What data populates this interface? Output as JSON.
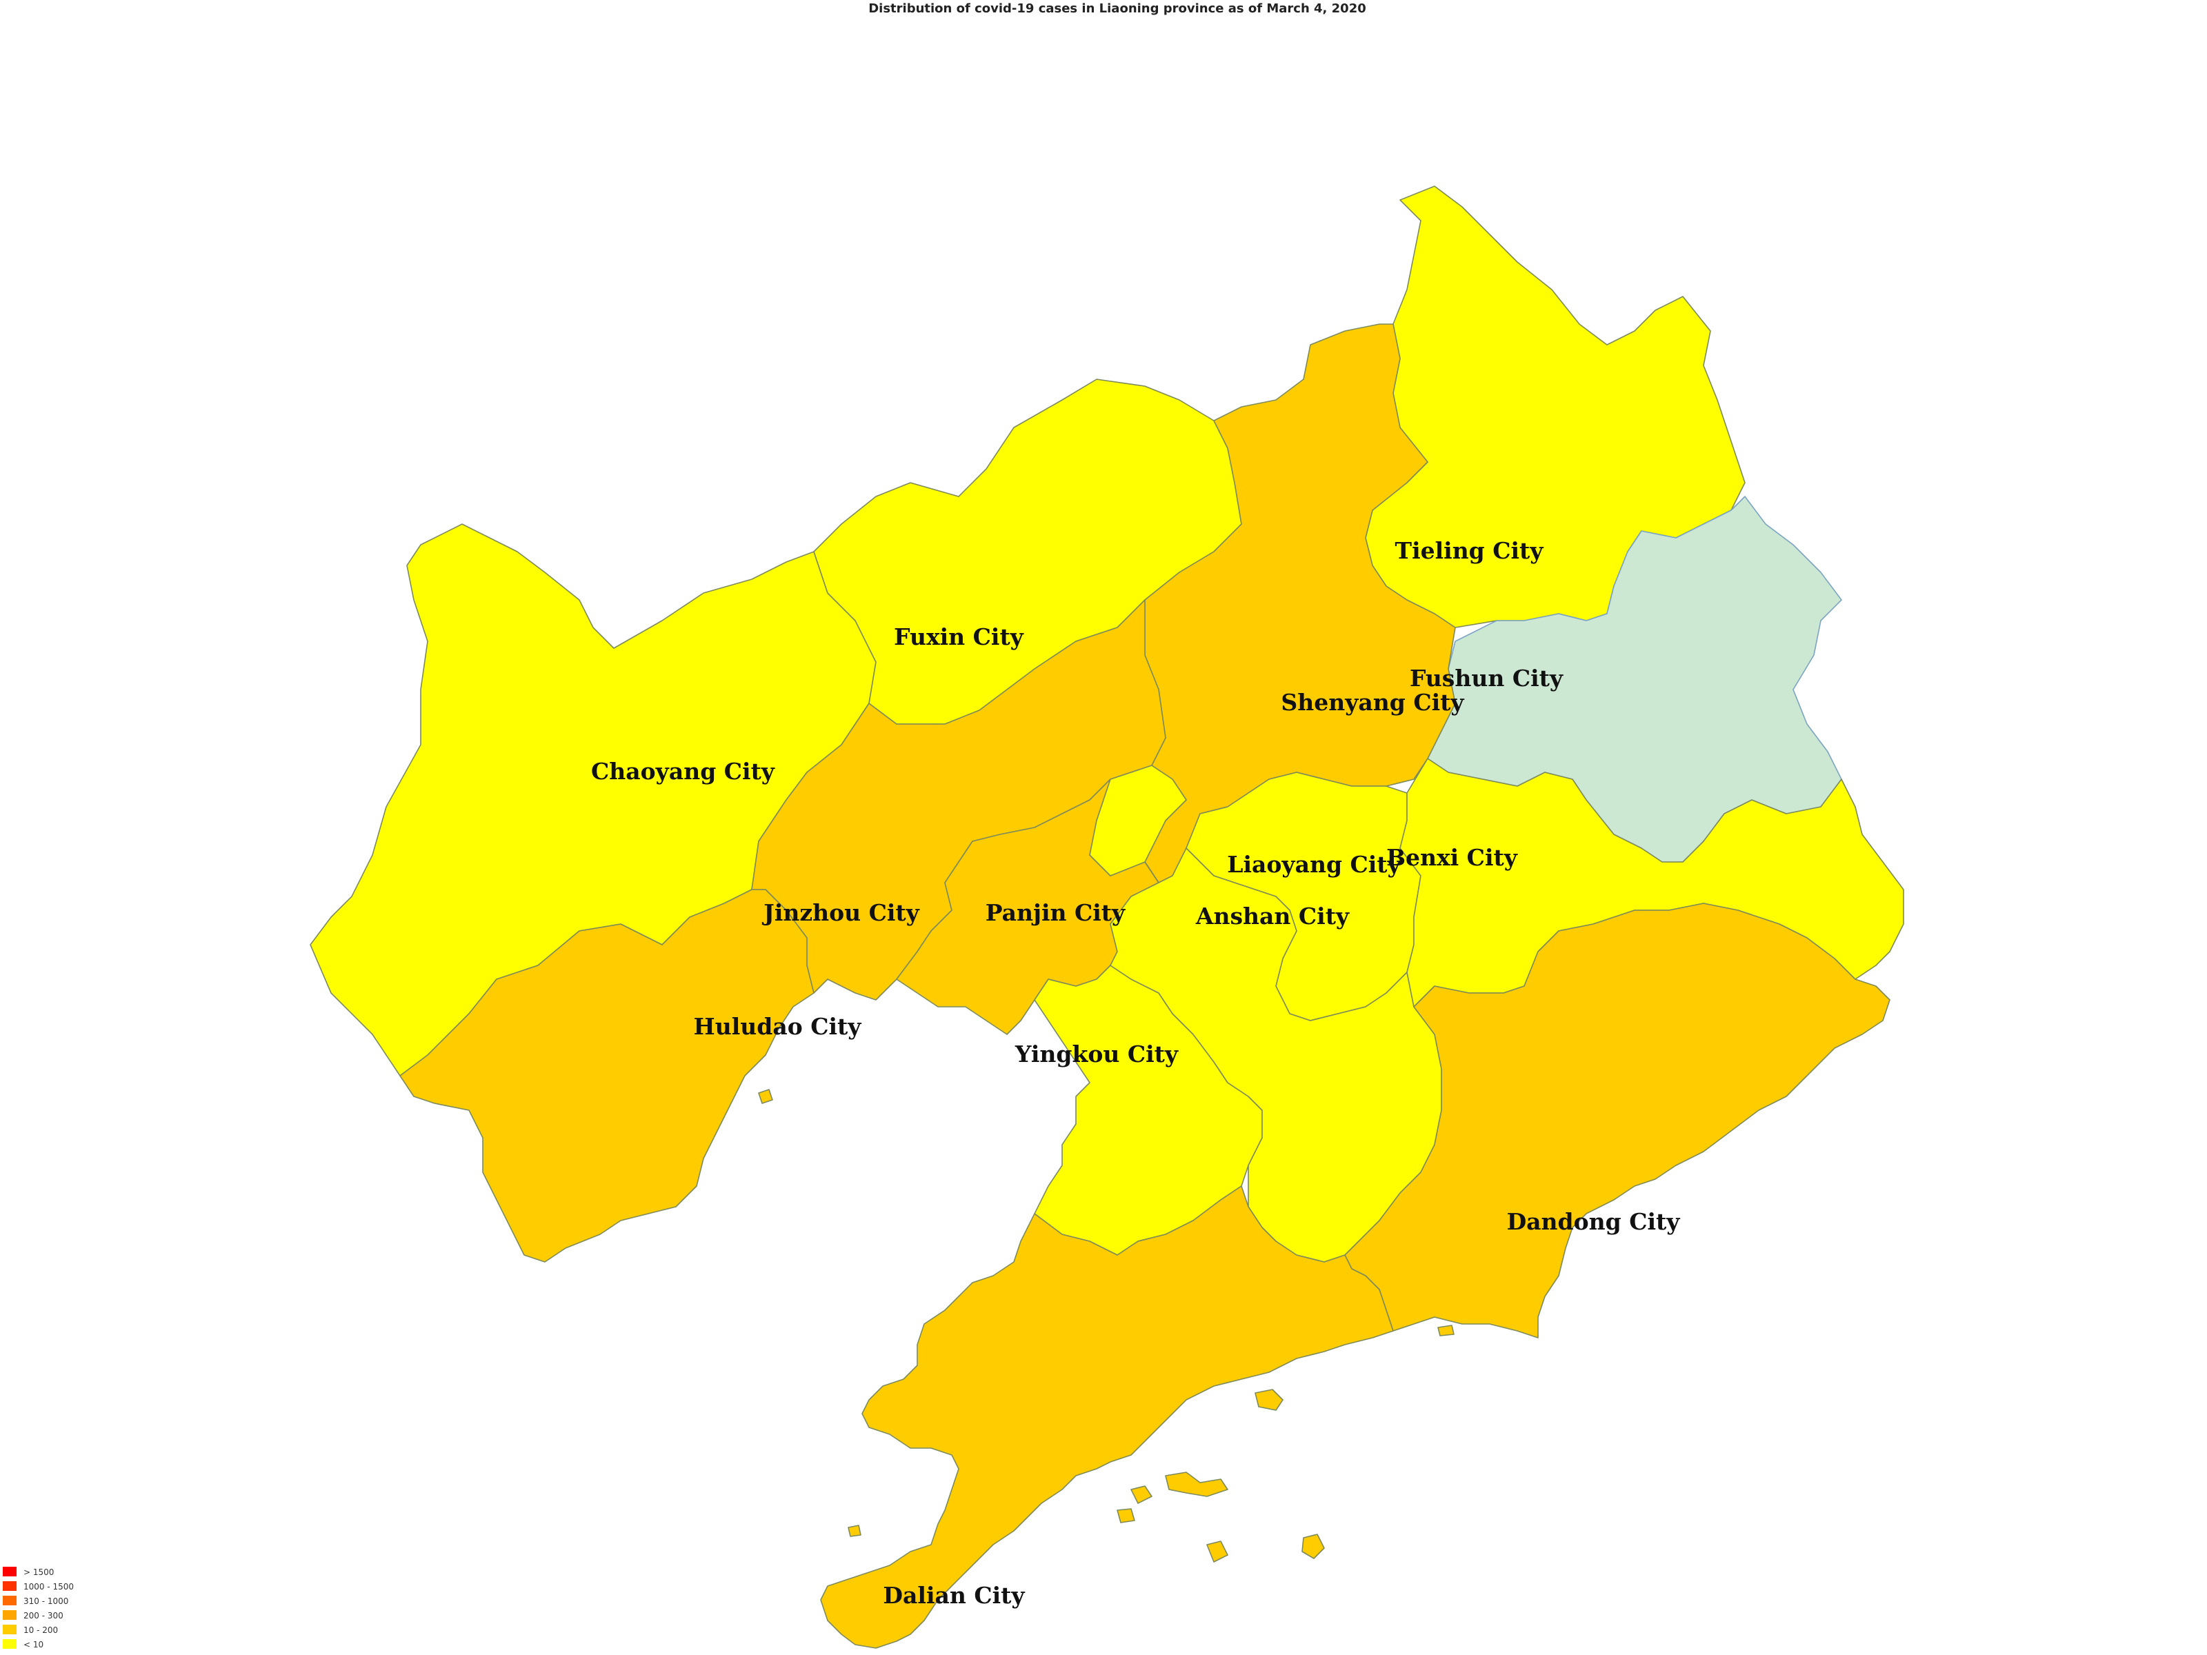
{
  "title": "Distribution of covid-19 cases in Liaoning province as of March 4, 2020",
  "colors": {
    "tier_lt10": "#ffff00",
    "tier_10_200": "#ffcc00",
    "tier_200_300": "#ffa500",
    "tier_310_1000": "#ff6a00",
    "tier_1000_1500": "#ff3300",
    "tier_gt1500": "#ff0000",
    "no_data": "#cde8d2"
  },
  "legend": [
    {
      "label": "> 1500",
      "color": "#ff0000"
    },
    {
      "label": "1000 - 1500",
      "color": "#ff3300"
    },
    {
      "label": "310 - 1000",
      "color": "#ff6a00"
    },
    {
      "label": "200 - 300",
      "color": "#ffa500"
    },
    {
      "label": "10 - 200",
      "color": "#ffcc00"
    },
    {
      "label": "< 10",
      "color": "#ffff00"
    }
  ],
  "cities": [
    {
      "name": "Tieling City",
      "tier": "< 10"
    },
    {
      "name": "Fuxin City",
      "tier": "< 10"
    },
    {
      "name": "Chaoyang City",
      "tier": "< 10"
    },
    {
      "name": "Fushun City",
      "tier": "no data"
    },
    {
      "name": "Shenyang City",
      "tier": "10 - 200"
    },
    {
      "name": "Liaoyang City",
      "tier": "< 10"
    },
    {
      "name": "Benxi City",
      "tier": "< 10"
    },
    {
      "name": "Jinzhou City",
      "tier": "10 - 200"
    },
    {
      "name": "Panjin City",
      "tier": "10 - 200"
    },
    {
      "name": "Anshan City",
      "tier": "< 10"
    },
    {
      "name": "Huludao City",
      "tier": "10 - 200"
    },
    {
      "name": "Yingkou City",
      "tier": "< 10"
    },
    {
      "name": "Dandong City",
      "tier": "10 - 200"
    },
    {
      "name": "Dalian City",
      "tier": "10 - 200"
    }
  ]
}
